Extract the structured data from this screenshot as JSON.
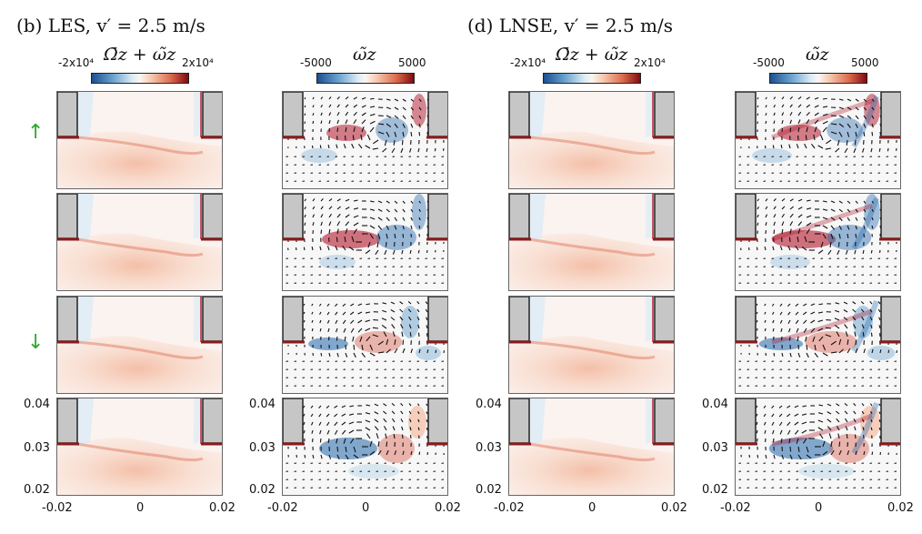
{
  "figure": {
    "groups": [
      {
        "title": "(b) LES, v′ = 2.5 m/s",
        "cols": [
          {
            "label": "Ω̄z + ω̃z",
            "min_label": "-2x10⁴",
            "max_label": "2x10⁴"
          },
          {
            "label": "ω̃z",
            "min_label": "-5000",
            "max_label": "5000"
          }
        ]
      },
      {
        "title": "(d) LNSE, v′ = 2.5 m/s",
        "cols": [
          {
            "label": "Ω̄z + ω̃z",
            "min_label": "-2x10⁴",
            "max_label": "2x10⁴"
          },
          {
            "label": "ω̃z",
            "min_label": "-5000",
            "max_label": "5000"
          }
        ]
      }
    ],
    "row_arrows": [
      "↑",
      "",
      "↓",
      ""
    ],
    "x_ticks": [
      "-0.02",
      "0",
      "0.02"
    ],
    "y_ticks": [
      "0.04",
      "0.03",
      "0.02"
    ],
    "colormap": {
      "negative": "#2166ac",
      "neutral": "#f7f7f7",
      "positive": "#b2182b",
      "arrow": "#2ea82e"
    }
  }
}
